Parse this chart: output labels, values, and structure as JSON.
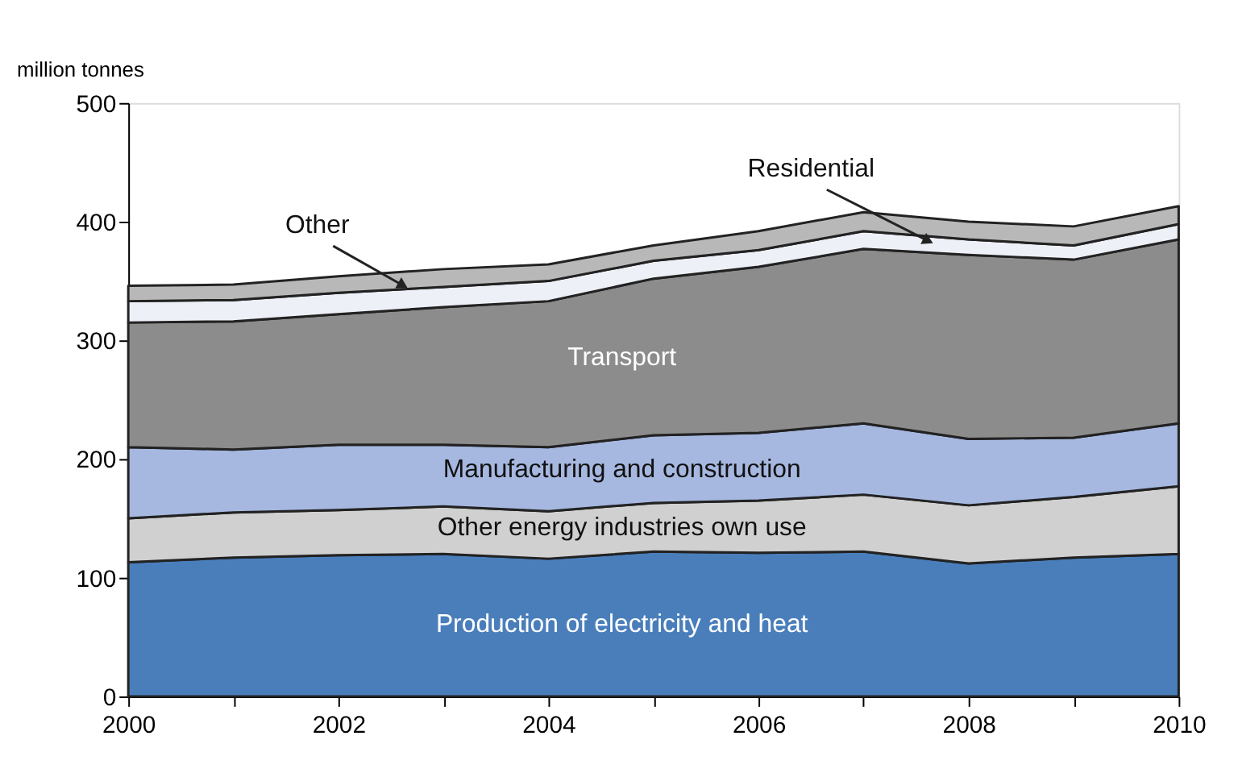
{
  "chart_data": {
    "type": "area",
    "stacked": true,
    "ylabel": "million tonnes",
    "x": [
      2000,
      2001,
      2002,
      2003,
      2004,
      2005,
      2006,
      2007,
      2008,
      2009,
      2010
    ],
    "series": [
      {
        "name": "Production of electricity and heat",
        "color": "#4a7ebb",
        "values": [
          113,
          117,
          119,
          120,
          116,
          122,
          121,
          122,
          112,
          117,
          120
        ]
      },
      {
        "name": "Other energy industries own use",
        "color": "#d0d0d0",
        "values": [
          37,
          38,
          38,
          40,
          40,
          41,
          44,
          48,
          49,
          51,
          57
        ]
      },
      {
        "name": "Manufacturing and construction",
        "color": "#a6b8e0",
        "values": [
          60,
          53,
          55,
          52,
          54,
          57,
          57,
          60,
          56,
          50,
          53
        ]
      },
      {
        "name": "Transport",
        "color": "#8c8c8c",
        "values": [
          105,
          108,
          110,
          116,
          123,
          132,
          140,
          147,
          155,
          150,
          155
        ]
      },
      {
        "name": "Residential",
        "color": "#eef0f8",
        "values": [
          18,
          18,
          18,
          17,
          17,
          15,
          14,
          15,
          13,
          12,
          13
        ]
      },
      {
        "name": "Other",
        "color": "#b8b8b8",
        "values": [
          13,
          13,
          14,
          15,
          14,
          13,
          16,
          16,
          15,
          16,
          15
        ]
      }
    ],
    "xlim": [
      2000,
      2010
    ],
    "xticks": [
      2000,
      {
        "value": 2001,
        "label": null
      },
      2002,
      {
        "value": 2003,
        "label": null
      },
      2004,
      {
        "value": 2005,
        "label": null
      },
      2006,
      {
        "value": 2007,
        "label": null
      },
      2008,
      {
        "value": 2009,
        "label": null
      },
      2010
    ],
    "ylim": [
      0,
      500
    ],
    "yticks": [
      0,
      100,
      200,
      300,
      400,
      500
    ],
    "grid": false
  }
}
